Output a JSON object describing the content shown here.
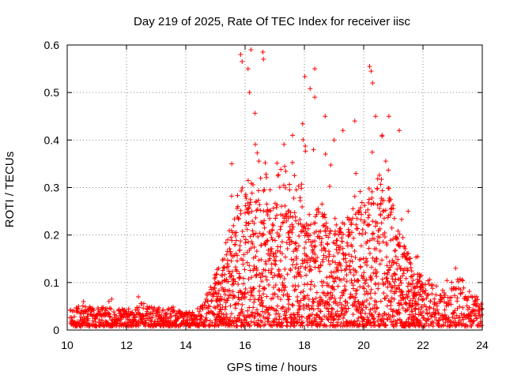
{
  "chart_data": {
    "type": "scatter",
    "title": "Day 219 of 2025, Rate Of TEC Index for receiver iisc",
    "xlabel": "GPS time / hours",
    "ylabel": "ROTI / TECUs",
    "xlim": [
      10,
      24
    ],
    "ylim": [
      0,
      0.6
    ],
    "xticks": [
      10,
      12,
      14,
      16,
      18,
      20,
      22,
      24
    ],
    "yticks": [
      0,
      0.1,
      0.2,
      0.3,
      0.4,
      0.5,
      0.6
    ],
    "xtick_labels": [
      "10",
      "12",
      "14",
      "16",
      "18",
      "20",
      "22",
      "24"
    ],
    "ytick_labels": [
      "0",
      "0.1",
      "0.2",
      "0.3",
      "0.4",
      "0.5",
      "0.6"
    ],
    "grid": true,
    "marker": "plus",
    "color": "#ff0000",
    "envelope": {
      "x": [
        10.1,
        10.5,
        11.0,
        11.5,
        12.0,
        12.5,
        13.0,
        13.5,
        14.0,
        14.5,
        14.8,
        15.1,
        15.4,
        15.6,
        15.8,
        16.0,
        16.2,
        16.4,
        16.6,
        16.8,
        17.0,
        17.3,
        17.6,
        17.8,
        18.0,
        18.3,
        18.5,
        18.8,
        19.0,
        19.3,
        19.6,
        19.8,
        20.0,
        20.2,
        20.4,
        20.6,
        20.8,
        21.0,
        21.2,
        21.5,
        21.8,
        22.0,
        22.3,
        22.6,
        22.9,
        23.2,
        23.5,
        23.8,
        24.0
      ],
      "y_typical_max": [
        0.035,
        0.045,
        0.04,
        0.04,
        0.035,
        0.05,
        0.04,
        0.04,
        0.03,
        0.04,
        0.08,
        0.12,
        0.16,
        0.22,
        0.26,
        0.3,
        0.28,
        0.3,
        0.32,
        0.25,
        0.26,
        0.3,
        0.32,
        0.28,
        0.24,
        0.22,
        0.25,
        0.22,
        0.2,
        0.22,
        0.24,
        0.26,
        0.24,
        0.3,
        0.34,
        0.32,
        0.3,
        0.26,
        0.2,
        0.15,
        0.12,
        0.1,
        0.09,
        0.08,
        0.08,
        0.1,
        0.08,
        0.06,
        0.05
      ],
      "y_peak": [
        0.045,
        0.06,
        0.05,
        0.065,
        0.045,
        0.07,
        0.06,
        0.05,
        0.04,
        0.05,
        0.1,
        0.18,
        0.26,
        0.35,
        0.58,
        0.59,
        0.55,
        0.59,
        0.54,
        0.45,
        0.38,
        0.41,
        0.35,
        0.3,
        0.55,
        0.49,
        0.42,
        0.4,
        0.42,
        0.45,
        0.44,
        0.4,
        0.56,
        0.5,
        0.45,
        0.45,
        0.44,
        0.42,
        0.25,
        0.22,
        0.16,
        0.14,
        0.12,
        0.12,
        0.1,
        0.13,
        0.12,
        0.08,
        0.06
      ]
    },
    "notable_points": [
      {
        "x": 15.55,
        "y": 0.35
      },
      {
        "x": 15.85,
        "y": 0.58
      },
      {
        "x": 15.9,
        "y": 0.565
      },
      {
        "x": 16.1,
        "y": 0.55
      },
      {
        "x": 16.2,
        "y": 0.59
      },
      {
        "x": 16.6,
        "y": 0.585
      },
      {
        "x": 16.62,
        "y": 0.57
      },
      {
        "x": 16.15,
        "y": 0.5
      },
      {
        "x": 17.6,
        "y": 0.41
      },
      {
        "x": 18.35,
        "y": 0.55
      },
      {
        "x": 18.35,
        "y": 0.49
      },
      {
        "x": 18.7,
        "y": 0.45
      },
      {
        "x": 19.0,
        "y": 0.4
      },
      {
        "x": 19.3,
        "y": 0.42
      },
      {
        "x": 19.7,
        "y": 0.44
      },
      {
        "x": 20.2,
        "y": 0.555
      },
      {
        "x": 20.25,
        "y": 0.545
      },
      {
        "x": 20.3,
        "y": 0.52
      },
      {
        "x": 20.4,
        "y": 0.45
      },
      {
        "x": 20.85,
        "y": 0.45
      },
      {
        "x": 21.2,
        "y": 0.42
      },
      {
        "x": 21.5,
        "y": 0.25
      },
      {
        "x": 23.1,
        "y": 0.13
      },
      {
        "x": 12.4,
        "y": 0.07
      },
      {
        "x": 10.55,
        "y": 0.06
      },
      {
        "x": 11.5,
        "y": 0.065
      }
    ]
  }
}
